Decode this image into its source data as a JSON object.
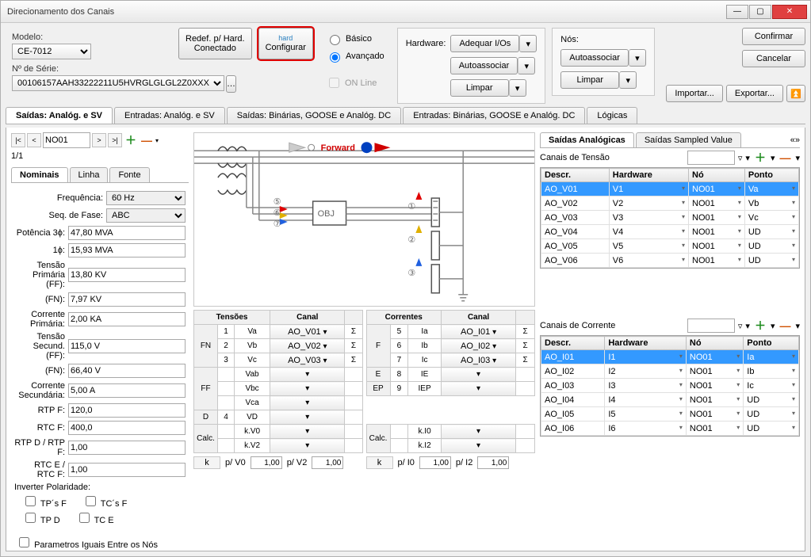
{
  "window": {
    "title": "Direcionamento dos Canais"
  },
  "top": {
    "modelo_label": "Modelo:",
    "modelo_value": "CE-7012",
    "serie_label": "Nº de Série:",
    "serie_value": "00106157AAH33222211U5HVRGLGLGL2Z0XXX",
    "redef_line1": "Redef. p/ Hard.",
    "redef_line2": "Conectado",
    "configurar": "Configurar",
    "basico": "Básico",
    "avancado": "Avançado",
    "online": "ON Line",
    "hardware_label": "Hardware:",
    "adequar": "Adequar I/Os",
    "autoassociar": "Autoassociar",
    "limpar": "Limpar",
    "nos_label": "Nós:",
    "confirmar": "Confirmar",
    "cancelar": "Cancelar",
    "importar": "Importar...",
    "exportar": "Exportar..."
  },
  "tabs": {
    "t1": "Saídas: Analóg. e SV",
    "t2": "Entradas: Analóg. e SV",
    "t3": "Saídas: Binárias, GOOSE e Analóg. DC",
    "t4": "Entradas: Binárias, GOOSE e Analóg. DC",
    "t5": "Lógicas"
  },
  "left": {
    "node": "NO01",
    "counter": "1/1",
    "tab_nominais": "Nominais",
    "tab_linha": "Linha",
    "tab_fonte": "Fonte",
    "freq_l": "Frequência:",
    "freq_v": "60 Hz",
    "seq_l": "Seq. de Fase:",
    "seq_v": "ABC",
    "pot3_l": "Potência 3ϕ:",
    "pot3_v": "47,80 MVA",
    "pot1_l": "1ϕ:",
    "pot1_v": "15,93 MVA",
    "tprim_l": "Tensão Primária (FF):",
    "tprim_v": "13,80 KV",
    "fn_l": "(FN):",
    "fn_v": "7,97 KV",
    "cprim_l": "Corrente Primária:",
    "cprim_v": "2,00 KA",
    "tsec_l": "Tensão Secund. (FF):",
    "tsec_v": "115,0 V",
    "fn2_l": "(FN):",
    "fn2_v": "66,40 V",
    "csec_l": "Corrente Secundária:",
    "csec_v": "5,00 A",
    "rtpf_l": "RTP F:",
    "rtpf_v": "120,0",
    "rtcf_l": "RTC F:",
    "rtcf_v": "400,0",
    "rtpd_l": "RTP D / RTP F:",
    "rtpd_v": "1,00",
    "rtce_l": "RTC E / RTC F:",
    "rtce_v": "1,00",
    "inv_l": "Inverter Polaridade:",
    "tpsf": "TP´s F",
    "tcsf": "TC´s F",
    "tpd": "TP D",
    "tce": "TC E",
    "param": "Parametros Iguais Entre os Nós"
  },
  "diagram": {
    "forward": "Forward",
    "obj": "OBJ"
  },
  "mid": {
    "tensoes_h": "Tensões",
    "canal_h": "Canal",
    "correntes_h": "Correntes",
    "fn": "FN",
    "ff": "FF",
    "d": "D",
    "calc": "Calc.",
    "f": "F",
    "e": "E",
    "ep": "EP",
    "va": "Va",
    "vb": "Vb",
    "vc": "Vc",
    "vab": "Vab",
    "vbc": "Vbc",
    "vca": "Vca",
    "vd": "VD",
    "kv0": "k.V0",
    "kv2": "k.V2",
    "ia": "Ia",
    "ib": "Ib",
    "ic": "Ic",
    "ie": "IE",
    "iep": "IEP",
    "ki0": "k.I0",
    "ki2": "k.I2",
    "aov01": "AO_V01",
    "aov02": "AO_V02",
    "aov03": "AO_V03",
    "aoi01": "AO_I01",
    "aoi02": "AO_I02",
    "aoi03": "AO_I03",
    "k": "k",
    "pv0": "p/ V0",
    "pv2": "p/ V2",
    "pi0": "p/ I0",
    "pi2": "p/ I2",
    "one00": "1,00"
  },
  "right": {
    "tab_analog": "Saídas Analógicas",
    "tab_sv": "Saídas Sampled Value",
    "tensao_title": "Canais de Tensão",
    "corrente_title": "Canais de Corrente",
    "h_descr": "Descr.",
    "h_hw": "Hardware",
    "h_no": "Nó",
    "h_ponto": "Ponto",
    "tensao_rows": [
      {
        "d": "AO_V01",
        "h": "V1",
        "n": "NO01",
        "p": "Va"
      },
      {
        "d": "AO_V02",
        "h": "V2",
        "n": "NO01",
        "p": "Vb"
      },
      {
        "d": "AO_V03",
        "h": "V3",
        "n": "NO01",
        "p": "Vc"
      },
      {
        "d": "AO_V04",
        "h": "V4",
        "n": "NO01",
        "p": "UD"
      },
      {
        "d": "AO_V05",
        "h": "V5",
        "n": "NO01",
        "p": "UD"
      },
      {
        "d": "AO_V06",
        "h": "V6",
        "n": "NO01",
        "p": "UD"
      }
    ],
    "corrente_rows": [
      {
        "d": "AO_I01",
        "h": "I1",
        "n": "NO01",
        "p": "Ia"
      },
      {
        "d": "AO_I02",
        "h": "I2",
        "n": "NO01",
        "p": "Ib"
      },
      {
        "d": "AO_I03",
        "h": "I3",
        "n": "NO01",
        "p": "Ic"
      },
      {
        "d": "AO_I04",
        "h": "I4",
        "n": "NO01",
        "p": "UD"
      },
      {
        "d": "AO_I05",
        "h": "I5",
        "n": "NO01",
        "p": "UD"
      },
      {
        "d": "AO_I06",
        "h": "I6",
        "n": "NO01",
        "p": "UD"
      }
    ]
  },
  "colors": {
    "accent": "#3399ff",
    "highlight": "#e00000"
  }
}
